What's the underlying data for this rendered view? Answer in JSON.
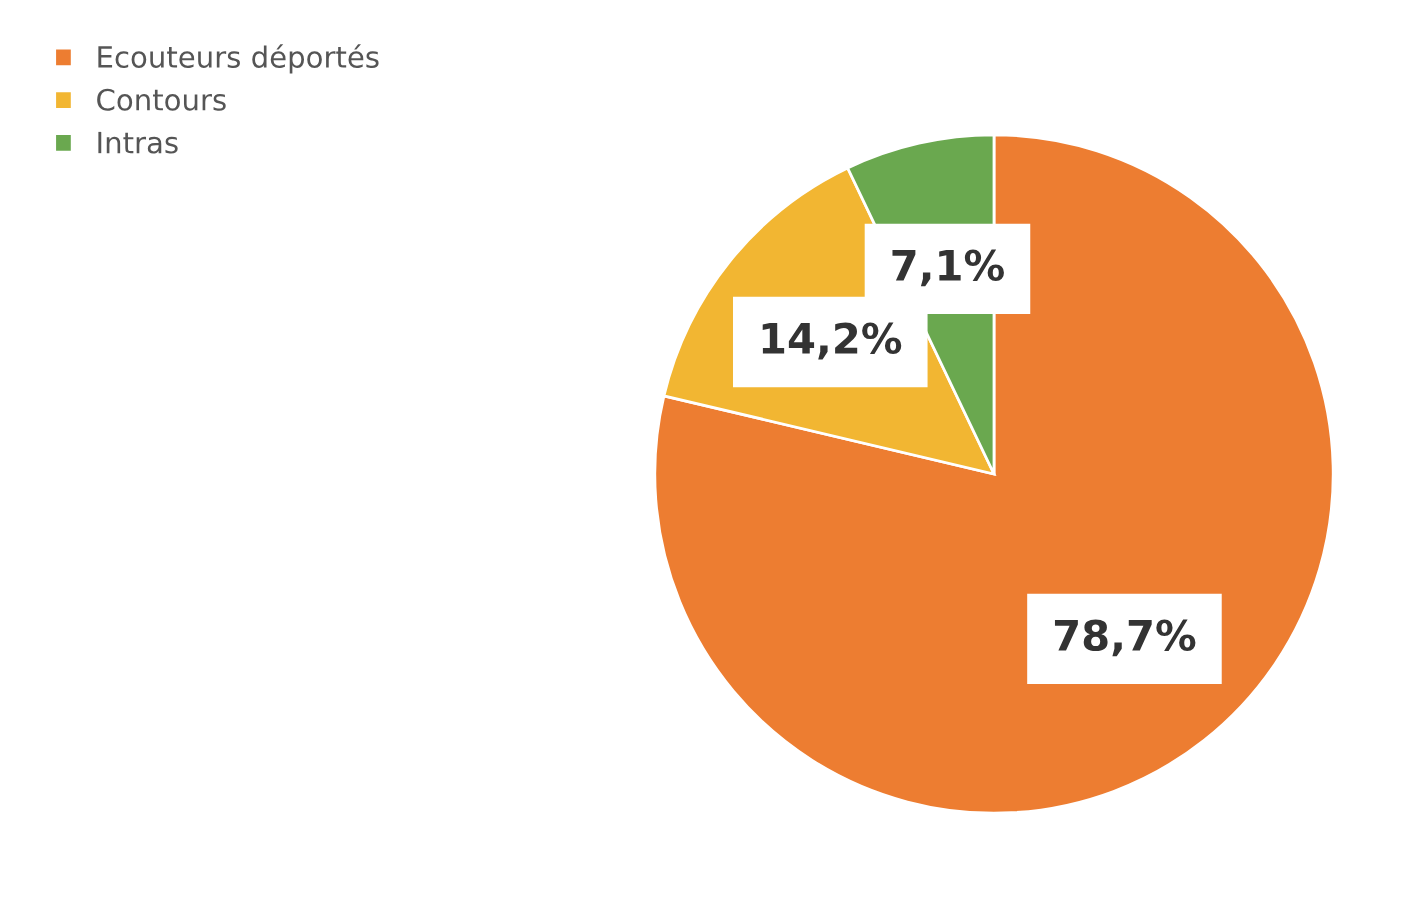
{
  "chart_data": {
    "type": "pie",
    "categories": [
      "Ecouteurs déportés",
      "Contours",
      "Intras"
    ],
    "values": [
      78.7,
      14.2,
      7.1
    ],
    "colors": [
      "#ed7d31",
      "#f2b632",
      "#6aa84f"
    ],
    "value_labels": [
      "78,7%",
      "14,2%",
      "7,1%"
    ],
    "legend": "top left"
  }
}
